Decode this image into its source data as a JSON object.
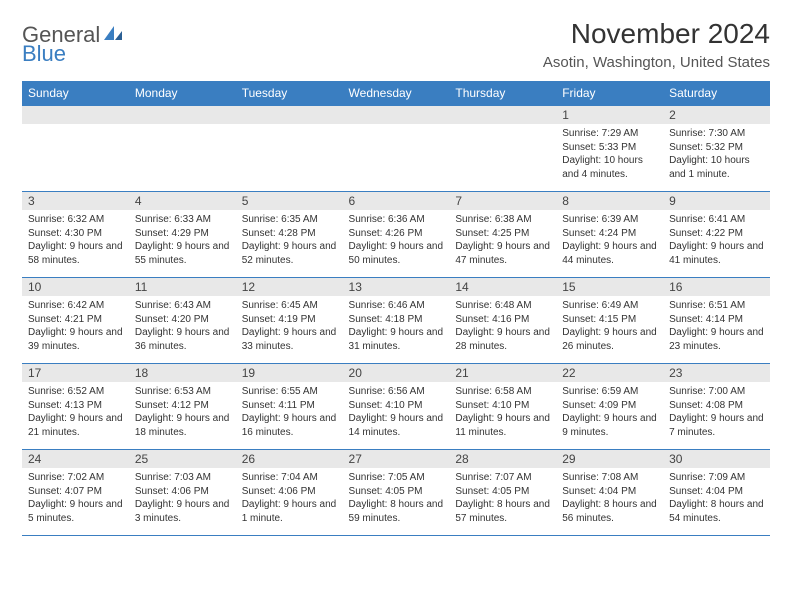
{
  "brand": {
    "name1": "General",
    "name2": "Blue"
  },
  "colors": {
    "accent": "#3a7ec1",
    "header_bg": "#3a7ec1",
    "header_text": "#ffffff",
    "daynum_bg": "#e8e8e8",
    "text": "#333333",
    "border": "#3a7ec1"
  },
  "title": "November 2024",
  "location": "Asotin, Washington, United States",
  "weekdays": [
    "Sunday",
    "Monday",
    "Tuesday",
    "Wednesday",
    "Thursday",
    "Friday",
    "Saturday"
  ],
  "calendar": {
    "type": "table",
    "columns": 7,
    "rows": 5,
    "font_size_header_pt": 12,
    "font_size_daynum_pt": 12,
    "font_size_body_pt": 10,
    "weeks": [
      [
        null,
        null,
        null,
        null,
        null,
        {
          "n": "1",
          "sunrise": "Sunrise: 7:29 AM",
          "sunset": "Sunset: 5:33 PM",
          "daylight": "Daylight: 10 hours and 4 minutes."
        },
        {
          "n": "2",
          "sunrise": "Sunrise: 7:30 AM",
          "sunset": "Sunset: 5:32 PM",
          "daylight": "Daylight: 10 hours and 1 minute."
        }
      ],
      [
        {
          "n": "3",
          "sunrise": "Sunrise: 6:32 AM",
          "sunset": "Sunset: 4:30 PM",
          "daylight": "Daylight: 9 hours and 58 minutes."
        },
        {
          "n": "4",
          "sunrise": "Sunrise: 6:33 AM",
          "sunset": "Sunset: 4:29 PM",
          "daylight": "Daylight: 9 hours and 55 minutes."
        },
        {
          "n": "5",
          "sunrise": "Sunrise: 6:35 AM",
          "sunset": "Sunset: 4:28 PM",
          "daylight": "Daylight: 9 hours and 52 minutes."
        },
        {
          "n": "6",
          "sunrise": "Sunrise: 6:36 AM",
          "sunset": "Sunset: 4:26 PM",
          "daylight": "Daylight: 9 hours and 50 minutes."
        },
        {
          "n": "7",
          "sunrise": "Sunrise: 6:38 AM",
          "sunset": "Sunset: 4:25 PM",
          "daylight": "Daylight: 9 hours and 47 minutes."
        },
        {
          "n": "8",
          "sunrise": "Sunrise: 6:39 AM",
          "sunset": "Sunset: 4:24 PM",
          "daylight": "Daylight: 9 hours and 44 minutes."
        },
        {
          "n": "9",
          "sunrise": "Sunrise: 6:41 AM",
          "sunset": "Sunset: 4:22 PM",
          "daylight": "Daylight: 9 hours and 41 minutes."
        }
      ],
      [
        {
          "n": "10",
          "sunrise": "Sunrise: 6:42 AM",
          "sunset": "Sunset: 4:21 PM",
          "daylight": "Daylight: 9 hours and 39 minutes."
        },
        {
          "n": "11",
          "sunrise": "Sunrise: 6:43 AM",
          "sunset": "Sunset: 4:20 PM",
          "daylight": "Daylight: 9 hours and 36 minutes."
        },
        {
          "n": "12",
          "sunrise": "Sunrise: 6:45 AM",
          "sunset": "Sunset: 4:19 PM",
          "daylight": "Daylight: 9 hours and 33 minutes."
        },
        {
          "n": "13",
          "sunrise": "Sunrise: 6:46 AM",
          "sunset": "Sunset: 4:18 PM",
          "daylight": "Daylight: 9 hours and 31 minutes."
        },
        {
          "n": "14",
          "sunrise": "Sunrise: 6:48 AM",
          "sunset": "Sunset: 4:16 PM",
          "daylight": "Daylight: 9 hours and 28 minutes."
        },
        {
          "n": "15",
          "sunrise": "Sunrise: 6:49 AM",
          "sunset": "Sunset: 4:15 PM",
          "daylight": "Daylight: 9 hours and 26 minutes."
        },
        {
          "n": "16",
          "sunrise": "Sunrise: 6:51 AM",
          "sunset": "Sunset: 4:14 PM",
          "daylight": "Daylight: 9 hours and 23 minutes."
        }
      ],
      [
        {
          "n": "17",
          "sunrise": "Sunrise: 6:52 AM",
          "sunset": "Sunset: 4:13 PM",
          "daylight": "Daylight: 9 hours and 21 minutes."
        },
        {
          "n": "18",
          "sunrise": "Sunrise: 6:53 AM",
          "sunset": "Sunset: 4:12 PM",
          "daylight": "Daylight: 9 hours and 18 minutes."
        },
        {
          "n": "19",
          "sunrise": "Sunrise: 6:55 AM",
          "sunset": "Sunset: 4:11 PM",
          "daylight": "Daylight: 9 hours and 16 minutes."
        },
        {
          "n": "20",
          "sunrise": "Sunrise: 6:56 AM",
          "sunset": "Sunset: 4:10 PM",
          "daylight": "Daylight: 9 hours and 14 minutes."
        },
        {
          "n": "21",
          "sunrise": "Sunrise: 6:58 AM",
          "sunset": "Sunset: 4:10 PM",
          "daylight": "Daylight: 9 hours and 11 minutes."
        },
        {
          "n": "22",
          "sunrise": "Sunrise: 6:59 AM",
          "sunset": "Sunset: 4:09 PM",
          "daylight": "Daylight: 9 hours and 9 minutes."
        },
        {
          "n": "23",
          "sunrise": "Sunrise: 7:00 AM",
          "sunset": "Sunset: 4:08 PM",
          "daylight": "Daylight: 9 hours and 7 minutes."
        }
      ],
      [
        {
          "n": "24",
          "sunrise": "Sunrise: 7:02 AM",
          "sunset": "Sunset: 4:07 PM",
          "daylight": "Daylight: 9 hours and 5 minutes."
        },
        {
          "n": "25",
          "sunrise": "Sunrise: 7:03 AM",
          "sunset": "Sunset: 4:06 PM",
          "daylight": "Daylight: 9 hours and 3 minutes."
        },
        {
          "n": "26",
          "sunrise": "Sunrise: 7:04 AM",
          "sunset": "Sunset: 4:06 PM",
          "daylight": "Daylight: 9 hours and 1 minute."
        },
        {
          "n": "27",
          "sunrise": "Sunrise: 7:05 AM",
          "sunset": "Sunset: 4:05 PM",
          "daylight": "Daylight: 8 hours and 59 minutes."
        },
        {
          "n": "28",
          "sunrise": "Sunrise: 7:07 AM",
          "sunset": "Sunset: 4:05 PM",
          "daylight": "Daylight: 8 hours and 57 minutes."
        },
        {
          "n": "29",
          "sunrise": "Sunrise: 7:08 AM",
          "sunset": "Sunset: 4:04 PM",
          "daylight": "Daylight: 8 hours and 56 minutes."
        },
        {
          "n": "30",
          "sunrise": "Sunrise: 7:09 AM",
          "sunset": "Sunset: 4:04 PM",
          "daylight": "Daylight: 8 hours and 54 minutes."
        }
      ]
    ]
  }
}
